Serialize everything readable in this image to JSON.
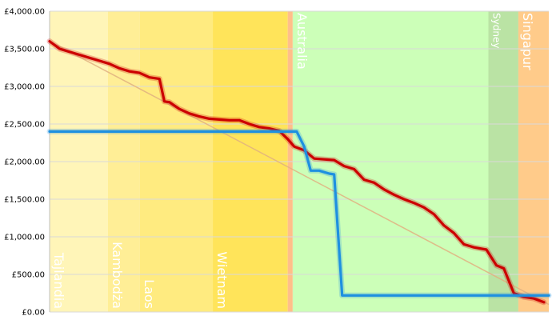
{
  "chart_data": {
    "type": "line",
    "title": "",
    "xlabel": "",
    "ylabel": "",
    "ylim": [
      0,
      4000
    ],
    "yticks": [
      "£0.00",
      "£500.00",
      "£1,000.00",
      "£1,500.00",
      "£2,000.00",
      "£2,500.00",
      "£3,000.00",
      "£3,500.00",
      "£4,000.00"
    ],
    "xlim": [
      0,
      100
    ],
    "grid": "horizontal",
    "regions": [
      {
        "label": "Tajlandia",
        "start": 0,
        "end": 11.7,
        "color": "#FFF5B8"
      },
      {
        "label": "Kambodża",
        "start": 11.7,
        "end": 18.1,
        "color": "#FFEE96"
      },
      {
        "label": "Laos",
        "start": 18.1,
        "end": 32.7,
        "color": "#FFEB80"
      },
      {
        "label": "Wietnam",
        "start": 32.7,
        "end": 47.7,
        "color": "#FFE45A"
      },
      {
        "label": "",
        "start": 47.7,
        "end": 48.7,
        "color": "#FFBF8A"
      },
      {
        "label": "Australia",
        "start": 48.7,
        "end": 87.9,
        "color": "#CCFFB8"
      },
      {
        "label": "Sydney",
        "start": 87.9,
        "end": 93.9,
        "color": "#BAE3A4"
      },
      {
        "label": "Singapur",
        "start": 93.9,
        "end": 100,
        "color": "#FFCB8A"
      }
    ],
    "series": [
      {
        "color": "#CC0000",
        "x": [
          0,
          2,
          4,
          6,
          8,
          10,
          12,
          14,
          16,
          18,
          20,
          22,
          23,
          24,
          26,
          28,
          30,
          32,
          34,
          36,
          38,
          40,
          42,
          44,
          46,
          47.7,
          49,
          51,
          53,
          55,
          57,
          59,
          61,
          63,
          65,
          67,
          69,
          71,
          73,
          75,
          77,
          79,
          81,
          83,
          85,
          87.5,
          89.5,
          91,
          93,
          95,
          97,
          99
        ],
        "y": [
          3600,
          3500,
          3460,
          3420,
          3380,
          3340,
          3300,
          3240,
          3200,
          3180,
          3120,
          3100,
          2800,
          2790,
          2700,
          2640,
          2600,
          2570,
          2560,
          2550,
          2550,
          2500,
          2460,
          2440,
          2410,
          2300,
          2200,
          2150,
          2040,
          2030,
          2020,
          1940,
          1900,
          1760,
          1720,
          1630,
          1560,
          1500,
          1450,
          1390,
          1300,
          1150,
          1050,
          900,
          860,
          830,
          620,
          580,
          250,
          200,
          180,
          130
        ]
      },
      {
        "color": "#1E90E0",
        "x": [
          0,
          10,
          20,
          30,
          40,
          47.7,
          49.5,
          51,
          52.3,
          54,
          56,
          57,
          58.6,
          70,
          80,
          90,
          100
        ],
        "y": [
          2400,
          2400,
          2400,
          2400,
          2400,
          2400,
          2400,
          2200,
          1880,
          1880,
          1840,
          1830,
          220,
          220,
          220,
          220,
          220
        ]
      },
      {
        "color": "#E0B080",
        "x": [
          0,
          100
        ],
        "y": [
          3600,
          100
        ]
      }
    ]
  }
}
